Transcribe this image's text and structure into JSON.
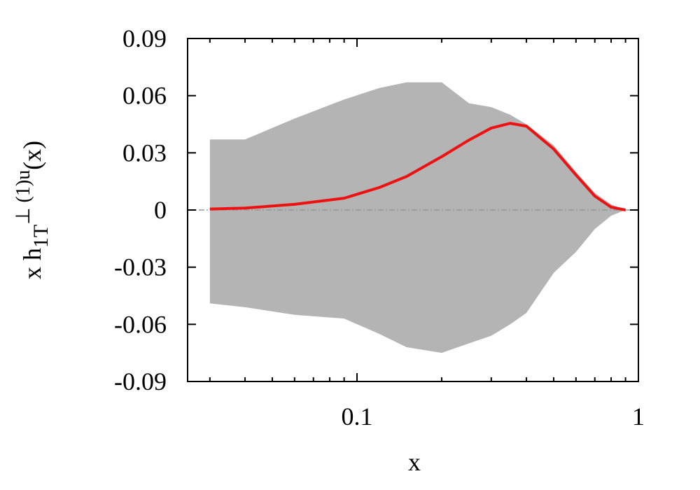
{
  "chart_data": {
    "type": "line",
    "xlabel": "x",
    "ylabel": {
      "main": "x h",
      "sub": "1T",
      "sup": "⊥ (1)u",
      "tail": "(x)"
    },
    "log_x": true,
    "xlim": [
      0.025,
      1
    ],
    "ylim": [
      -0.09,
      0.09
    ],
    "xticks": [
      0.1,
      1
    ],
    "xminorticks": [
      0.03,
      0.04,
      0.05,
      0.06,
      0.07,
      0.08,
      0.09,
      0.2,
      0.3,
      0.4,
      0.5,
      0.6,
      0.7,
      0.8,
      0.9
    ],
    "yticks": [
      0.09,
      0.06,
      0.03,
      0,
      -0.03,
      -0.06,
      -0.09
    ],
    "hlines": [
      0
    ],
    "hline_color": "#999999",
    "x": [
      0.03,
      0.04,
      0.06,
      0.09,
      0.12,
      0.15,
      0.2,
      0.25,
      0.3,
      0.35,
      0.4,
      0.5,
      0.6,
      0.7,
      0.8,
      0.9
    ],
    "band": {
      "color": "#b4b4b4",
      "upper": [
        0.037,
        0.037,
        0.048,
        0.058,
        0.064,
        0.067,
        0.067,
        0.056,
        0.054,
        0.05,
        0.045,
        0.034,
        0.02,
        0.009,
        0.003,
        0
      ],
      "lower": [
        -0.049,
        -0.051,
        -0.055,
        -0.057,
        -0.065,
        -0.072,
        -0.075,
        -0.07,
        -0.066,
        -0.06,
        -0.054,
        -0.033,
        -0.022,
        -0.01,
        -0.003,
        0
      ]
    },
    "series": [
      {
        "color": "#ee1111",
        "values": [
          0.0005,
          0.001,
          0.003,
          0.0062,
          0.0118,
          0.0176,
          0.028,
          0.0367,
          0.043,
          0.0455,
          0.044,
          0.032,
          0.0184,
          0.0073,
          0.0015,
          0
        ]
      }
    ]
  }
}
